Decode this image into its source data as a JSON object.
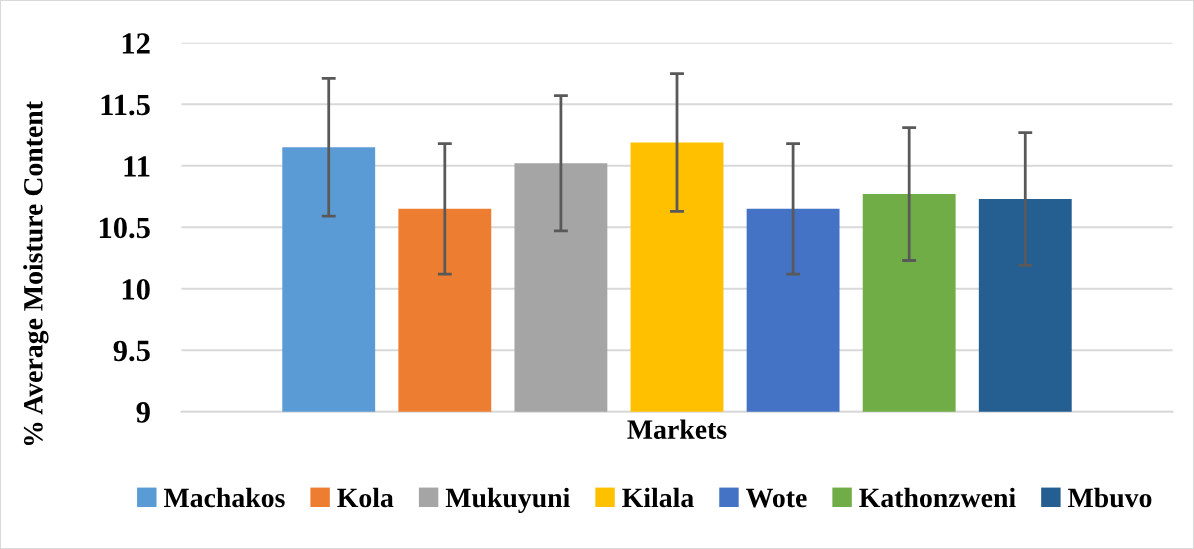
{
  "chart_data": {
    "type": "bar",
    "xlabel": "Markets",
    "ylabel": "% Average Moisture Content",
    "categories": [
      null
    ],
    "series": [
      {
        "name": "Machakos",
        "color": "#5b9bd5",
        "values": [
          11.15
        ],
        "errors": [
          0.56
        ]
      },
      {
        "name": "Kola",
        "color": "#ed7d31",
        "values": [
          10.65
        ],
        "errors": [
          0.53
        ]
      },
      {
        "name": "Mukuyuni",
        "color": "#a5a5a5",
        "values": [
          11.02
        ],
        "errors": [
          0.55
        ]
      },
      {
        "name": "Kilala",
        "color": "#ffc000",
        "values": [
          11.19
        ],
        "errors": [
          0.56
        ]
      },
      {
        "name": "Wote",
        "color": "#4472c4",
        "values": [
          10.65
        ],
        "errors": [
          0.53
        ]
      },
      {
        "name": "Kathonzweni",
        "color": "#70ad47",
        "values": [
          10.77
        ],
        "errors": [
          0.54
        ]
      },
      {
        "name": "Mbuvo",
        "color": "#255e91",
        "values": [
          10.73
        ],
        "errors": [
          0.54
        ]
      }
    ],
    "ylim": [
      9,
      12
    ],
    "yticks": [
      9,
      9.5,
      10,
      10.5,
      11,
      11.5,
      12
    ],
    "grid": "y",
    "legend": "bottom"
  }
}
